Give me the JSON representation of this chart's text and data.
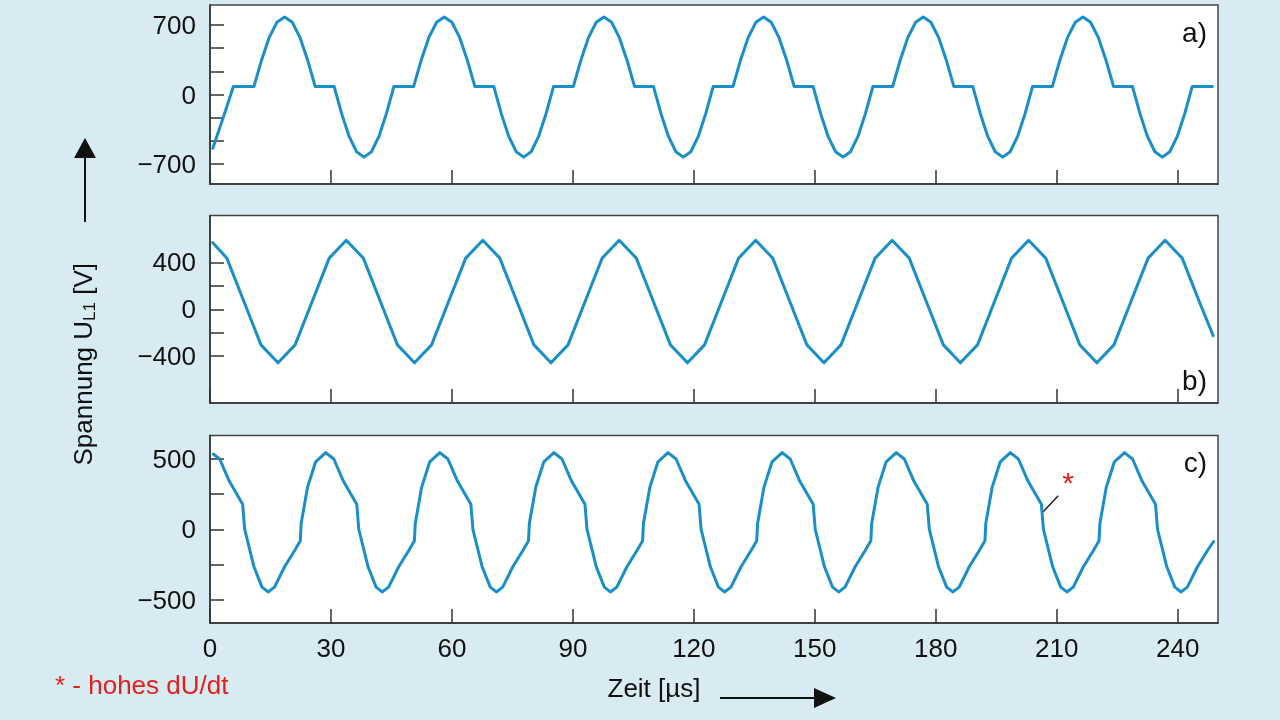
{
  "chart_data": [
    {
      "type": "line",
      "title": "a)",
      "tick_labels": "y",
      "xlim": [
        0,
        250
      ],
      "xticks": [
        0,
        30,
        60,
        90,
        120,
        150,
        180,
        210,
        240
      ],
      "ylim": [
        -900,
        900
      ],
      "yticks": [
        -700,
        {
          "value": -466.7,
          "label": null
        },
        {
          "value": -233.3,
          "label": null
        },
        0,
        {
          "value": 233.3,
          "label": null
        },
        {
          "value": 466.7,
          "label": null
        },
        700
      ],
      "series": [
        {
          "color": "#1a8ec8",
          "x": [
            0.7,
            3.3,
            5.8,
            10.9,
            12.8,
            14.7,
            16.6,
            18.5,
            20.4,
            22.3,
            24.2,
            26.1,
            30.8,
            32.65,
            34.5,
            36.35,
            38.2,
            40.05,
            41.9,
            43.75,
            45.6,
            50.5,
            52.4,
            54.3,
            56.2,
            58.1,
            60.0,
            61.9,
            63.8,
            65.7,
            70.4,
            72.25,
            74.1,
            75.95,
            77.8,
            79.65,
            81.5,
            83.35,
            85.2,
            90.1,
            92.0,
            93.9,
            95.8,
            97.7,
            99.6,
            101.5,
            103.4,
            105.3,
            110.0,
            111.85,
            113.7,
            115.55,
            117.4,
            119.25,
            121.1,
            122.95,
            124.8,
            129.7,
            131.6,
            133.5,
            135.4,
            137.3,
            139.2,
            141.1,
            143.0,
            144.9,
            149.6,
            151.45,
            153.3,
            155.15,
            157.0,
            158.85,
            160.7,
            162.55,
            164.4,
            169.3,
            171.2,
            173.1,
            175.0,
            176.9,
            178.8,
            180.7,
            182.6,
            184.5,
            189.2,
            191.05,
            192.9,
            194.75,
            196.6,
            198.45,
            200.3,
            202.15,
            204.0,
            208.9,
            210.8,
            212.7,
            214.6,
            216.5,
            218.4,
            220.3,
            222.2,
            224.1,
            228.8,
            230.65,
            232.5,
            234.35,
            236.2,
            238.05,
            239.9,
            241.75,
            243.6,
            248.6
          ],
          "values": [
            -541,
            -230,
            80,
            80,
            348,
            575,
            727,
            780,
            727,
            575,
            348,
            80,
            80,
            -192,
            -422,
            -576,
            -630,
            -576,
            -422,
            -192,
            80,
            80,
            348,
            575,
            727,
            780,
            727,
            575,
            348,
            80,
            80,
            -192,
            -422,
            -576,
            -630,
            -576,
            -422,
            -192,
            80,
            80,
            348,
            575,
            727,
            780,
            727,
            575,
            348,
            80,
            80,
            -192,
            -422,
            -576,
            -630,
            -576,
            -422,
            -192,
            80,
            80,
            348,
            575,
            727,
            780,
            727,
            575,
            348,
            80,
            80,
            -192,
            -422,
            -576,
            -630,
            -576,
            -422,
            -192,
            80,
            80,
            348,
            575,
            727,
            780,
            727,
            575,
            348,
            80,
            80,
            -192,
            -422,
            -576,
            -630,
            -576,
            -422,
            -192,
            80,
            80,
            348,
            575,
            727,
            780,
            727,
            575,
            348,
            80,
            80,
            -192,
            -422,
            -576,
            -630,
            -576,
            -422,
            -192,
            80,
            80
          ]
        }
      ]
    },
    {
      "type": "line",
      "title": "b)",
      "ylabel": "Spannung U$_{L1}$ [V]",
      "tick_labels": "y",
      "xlim": [
        0,
        250
      ],
      "xticks": [
        0,
        30,
        60,
        90,
        120,
        150,
        180,
        210,
        240
      ],
      "ylim": [
        -800,
        800
      ],
      "yticks": [
        -400,
        {
          "value": -200,
          "label": null
        },
        0,
        {
          "value": 200,
          "label": null
        },
        400
      ],
      "series": [
        {
          "color": "#1a8ec8",
          "x": [
            0.7,
            4.18,
            8.41,
            12.64,
            16.87,
            21.11,
            25.34,
            29.57,
            33.8,
            38.03,
            42.26,
            46.49,
            50.72,
            54.95,
            59.18,
            63.42,
            67.65,
            71.88,
            76.11,
            80.34,
            84.57,
            88.8,
            93.03,
            97.26,
            101.49,
            105.73,
            109.96,
            114.19,
            118.42,
            122.65,
            126.88,
            131.11,
            135.34,
            139.57,
            143.8,
            148.04,
            152.27,
            156.5,
            160.73,
            164.96,
            169.19,
            173.42,
            177.65,
            181.88,
            186.11,
            190.35,
            194.58,
            198.81,
            203.04,
            207.27,
            211.5,
            215.73,
            219.96,
            224.19,
            228.42,
            232.66,
            236.89,
            241.12,
            245.35,
            248.8
          ],
          "values": [
            568,
            436,
            66,
            -304,
            -457,
            -304,
            66,
            436,
            589,
            436,
            66,
            -304,
            -457,
            -304,
            66,
            436,
            589,
            436,
            66,
            -304,
            -457,
            -304,
            66,
            436,
            589,
            436,
            66,
            -304,
            -457,
            -304,
            66,
            436,
            589,
            436,
            66,
            -304,
            -457,
            -304,
            66,
            436,
            589,
            436,
            66,
            -304,
            -457,
            -304,
            66,
            436,
            589,
            436,
            66,
            -304,
            -457,
            -304,
            66,
            436,
            589,
            436,
            66,
            -225
          ]
        }
      ]
    },
    {
      "type": "line",
      "title": "c)",
      "xlabel": "Zeit [µs]",
      "xlim": [
        0,
        250
      ],
      "xticks": [
        0,
        30,
        60,
        90,
        120,
        150,
        180,
        210,
        240
      ],
      "ylim": [
        -667,
        667
      ],
      "yticks": [
        -500,
        {
          "value": -250,
          "label": null
        },
        0,
        {
          "value": 250,
          "label": null
        },
        500
      ],
      "annotations": [
        {
          "text": "*",
          "x": 206.4,
          "y": 110
        },
        "* - hohes dU/dt"
      ],
      "series": [
        {
          "color": "#1a8ec8",
          "x": [
            0.8,
            2.4,
            4.8,
            8.1,
            8.6,
            10.9,
            12.9,
            14.4,
            16.0,
            18.5,
            21.0,
            22.4,
            22.6,
            24.2,
            26.2,
            28.7,
            30.7,
            33.1,
            36.4,
            36.9,
            39.2,
            41.2,
            42.7,
            44.3,
            46.8,
            49.3,
            50.7,
            50.9,
            52.5,
            54.5,
            57.0,
            59.0,
            61.4,
            64.7,
            65.2,
            67.5,
            69.5,
            71.0,
            72.6,
            75.1,
            77.6,
            79.0,
            79.2,
            80.8,
            82.8,
            85.3,
            87.3,
            89.7,
            93.0,
            93.5,
            95.8,
            97.8,
            99.3,
            100.9,
            103.4,
            105.9,
            107.3,
            107.5,
            109.1,
            111.1,
            113.6,
            115.6,
            118.0,
            121.3,
            121.8,
            124.1,
            126.1,
            127.6,
            129.2,
            131.7,
            134.2,
            135.6,
            135.8,
            137.4,
            139.4,
            141.9,
            143.9,
            146.3,
            149.6,
            150.1,
            152.4,
            154.4,
            155.9,
            157.5,
            160.0,
            162.5,
            163.9,
            164.1,
            165.7,
            167.7,
            170.2,
            172.2,
            174.6,
            177.9,
            178.4,
            180.7,
            182.7,
            184.2,
            185.8,
            188.3,
            190.8,
            192.2,
            192.4,
            194.0,
            196.0,
            198.5,
            200.5,
            202.9,
            206.2,
            206.7,
            209.0,
            211.0,
            212.5,
            214.1,
            216.6,
            219.1,
            220.5,
            220.7,
            222.3,
            224.3,
            226.8,
            228.8,
            231.2,
            234.5,
            235.0,
            237.3,
            239.3,
            240.8,
            242.4,
            244.9,
            247.4,
            248.9
          ],
          "values": [
            535,
            500,
            341,
            177,
            0,
            -267,
            -412,
            -446,
            -412,
            -267,
            -151,
            -81,
            40,
            300,
            480,
            545,
            500,
            341,
            177,
            0,
            -267,
            -412,
            -446,
            -412,
            -267,
            -151,
            -81,
            40,
            300,
            480,
            545,
            500,
            341,
            177,
            0,
            -267,
            -412,
            -446,
            -412,
            -267,
            -151,
            -81,
            40,
            300,
            480,
            545,
            500,
            341,
            177,
            0,
            -267,
            -412,
            -446,
            -412,
            -267,
            -151,
            -81,
            40,
            300,
            480,
            545,
            500,
            341,
            177,
            0,
            -267,
            -412,
            -446,
            -412,
            -267,
            -151,
            -81,
            40,
            300,
            480,
            545,
            500,
            341,
            177,
            0,
            -267,
            -412,
            -446,
            -412,
            -267,
            -151,
            -81,
            40,
            300,
            480,
            545,
            500,
            341,
            177,
            0,
            -267,
            -412,
            -446,
            -412,
            -267,
            -151,
            -81,
            40,
            300,
            480,
            545,
            500,
            341,
            177,
            0,
            -267,
            -412,
            -446,
            -412,
            -267,
            -151,
            -81,
            40,
            300,
            480,
            545,
            500,
            341,
            177,
            0,
            -267,
            -412,
            -446,
            -412,
            -267,
            -151,
            -87
          ]
        }
      ]
    }
  ]
}
